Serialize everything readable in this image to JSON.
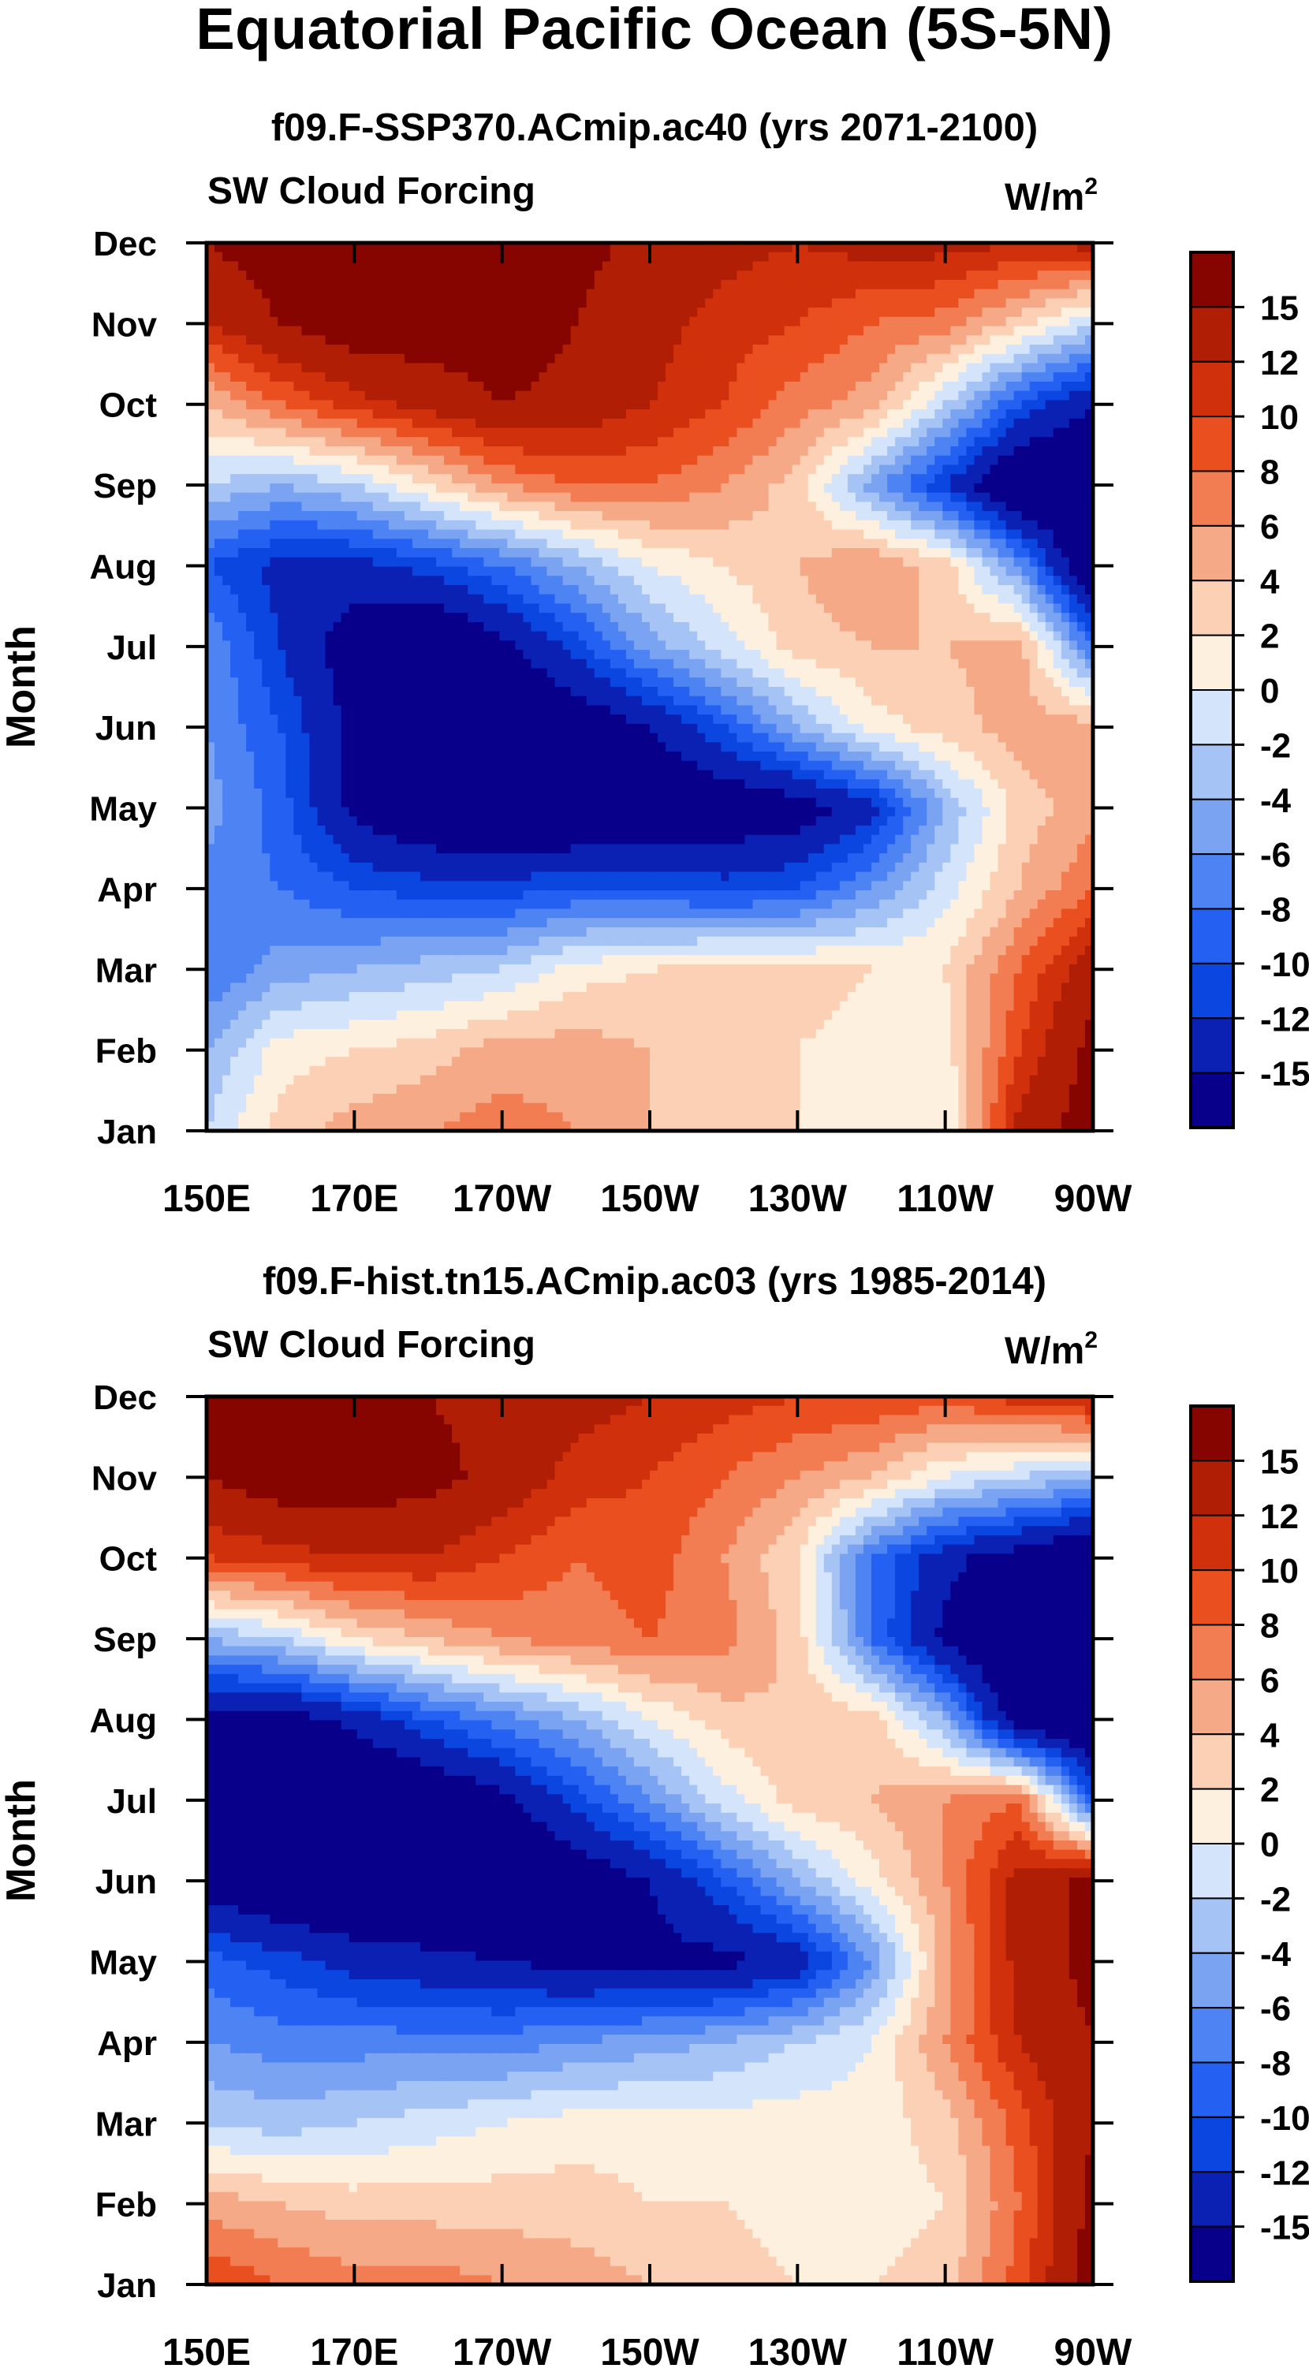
{
  "page": {
    "title": "Equatorial Pacific Ocean (5S-5N)"
  },
  "colors": {
    "palette": [
      "#08008a",
      "#0b21b3",
      "#0b46e0",
      "#2460f2",
      "#4d83f2",
      "#7aa3f2",
      "#a6c3f5",
      "#d4e5fb",
      "#fef0df",
      "#fbd0b5",
      "#f6a986",
      "#f27d52",
      "#ea4f20",
      "#d0300b",
      "#b01e05",
      "#860500"
    ],
    "axis": "#000000"
  },
  "chart_data": [
    {
      "type": "heatmap",
      "title": "f09.F-SSP370.ACmip.ac40 (yrs 2071-2100)",
      "variable": "SW Cloud Forcing",
      "units": "W/m",
      "units_sup": "2",
      "ylabel": "Month",
      "xlabel": "",
      "x_tick_labels": [
        "150E",
        "170E",
        "170W",
        "150W",
        "130W",
        "110W",
        "90W"
      ],
      "x_range": [
        150,
        270
      ],
      "y_tick_labels": [
        "Jan",
        "Feb",
        "Mar",
        "Apr",
        "May",
        "Jun",
        "Jul",
        "Aug",
        "Sep",
        "Oct",
        "Nov",
        "Dec"
      ],
      "colorbar_labels": [
        "15",
        "12",
        "10",
        "8",
        "6",
        "4",
        "2",
        "0",
        "-2",
        "-4",
        "-6",
        "-8",
        "-10",
        "-12",
        "-15"
      ],
      "contour_levels": [
        -15,
        -12,
        -10,
        -8,
        -6,
        -4,
        -2,
        0,
        2,
        4,
        6,
        8,
        10,
        12,
        15
      ],
      "grid_lon": [
        150,
        160,
        170,
        180,
        190,
        200,
        210,
        220,
        230,
        240,
        250,
        260,
        270
      ],
      "grid_months": [
        "Jan",
        "Feb",
        "Mar",
        "Apr",
        "May",
        "Jun",
        "Jul",
        "Aug",
        "Sep",
        "Oct",
        "Nov",
        "Dec"
      ],
      "values": [
        [
          -2,
          3,
          5,
          6,
          7,
          6,
          4,
          2,
          2,
          1,
          0,
          13,
          17
        ],
        [
          -4,
          1,
          2,
          3,
          5,
          5,
          4,
          3,
          2,
          1,
          1,
          10,
          16
        ],
        [
          -8,
          -5,
          -4,
          -3,
          -2,
          1,
          2,
          3,
          3,
          2,
          2,
          8,
          14
        ],
        [
          -7,
          -8,
          -10,
          -11,
          -11,
          -10,
          -10,
          -11,
          -10,
          -6,
          -1,
          4,
          8
        ],
        [
          -5,
          -9,
          -16,
          -19,
          -20,
          -20,
          -19,
          -18,
          -17,
          -13,
          -4,
          3,
          5
        ],
        [
          -6,
          -10,
          -16,
          -20,
          -20,
          -18,
          -15,
          -10,
          -4,
          1,
          3,
          5,
          5
        ],
        [
          -6,
          -12,
          -17,
          -20,
          -16,
          -11,
          -5,
          -1,
          3,
          4,
          4,
          5,
          -8
        ],
        [
          -10,
          -13,
          -13,
          -11,
          -8,
          -4,
          0,
          2,
          4,
          6,
          3,
          -6,
          -20
        ],
        [
          -2,
          -4,
          -2,
          2,
          6,
          8,
          8,
          6,
          3,
          -5,
          -12,
          -20,
          -20
        ],
        [
          4,
          8,
          11,
          13,
          15,
          14,
          12,
          10,
          7,
          5,
          -2,
          -10,
          -15
        ],
        [
          12,
          15,
          17,
          17,
          17,
          15,
          13,
          11,
          10,
          8,
          7,
          3,
          -2
        ],
        [
          15,
          17,
          17,
          17,
          17,
          16,
          14,
          13,
          12,
          13,
          13,
          12,
          13
        ]
      ]
    },
    {
      "type": "heatmap",
      "title": "f09.F-hist.tn15.ACmip.ac03 (yrs 1985-2014)",
      "variable": "SW Cloud Forcing",
      "units": "W/m",
      "units_sup": "2",
      "ylabel": "Month",
      "xlabel": "",
      "x_tick_labels": [
        "150E",
        "170E",
        "170W",
        "150W",
        "130W",
        "110W",
        "90W"
      ],
      "x_range": [
        150,
        270
      ],
      "y_tick_labels": [
        "Jan",
        "Feb",
        "Mar",
        "Apr",
        "May",
        "Jun",
        "Jul",
        "Aug",
        "Sep",
        "Oct",
        "Nov",
        "Dec"
      ],
      "colorbar_labels": [
        "15",
        "12",
        "10",
        "8",
        "6",
        "4",
        "2",
        "0",
        "-2",
        "-4",
        "-6",
        "-8",
        "-10",
        "-12",
        "-15"
      ],
      "contour_levels": [
        -15,
        -12,
        -10,
        -8,
        -6,
        -4,
        -2,
        0,
        2,
        4,
        6,
        8,
        10,
        12,
        15
      ],
      "grid_lon": [
        150,
        160,
        170,
        180,
        190,
        200,
        210,
        220,
        230,
        240,
        250,
        260,
        270
      ],
      "grid_months": [
        "Jan",
        "Feb",
        "Mar",
        "Apr",
        "May",
        "Jun",
        "Jul",
        "Aug",
        "Sep",
        "Oct",
        "Nov",
        "Dec"
      ],
      "values": [
        [
          10,
          8,
          7,
          7,
          6,
          5,
          4,
          3,
          2,
          2,
          3,
          9,
          17
        ],
        [
          5,
          4,
          3,
          3,
          3,
          3,
          2,
          2,
          1,
          1,
          2,
          8,
          16
        ],
        [
          -2,
          -3,
          -2,
          -1,
          0,
          1,
          1,
          1,
          1,
          1,
          3,
          9,
          15
        ],
        [
          -6,
          -7,
          -7,
          -7,
          -7,
          -6,
          -5,
          -4,
          -2,
          0,
          6,
          12,
          15
        ],
        [
          -9,
          -11,
          -13,
          -14,
          -15,
          -16,
          -16,
          -16,
          -14,
          -6,
          5,
          13,
          16
        ],
        [
          -17,
          -19,
          -20,
          -20,
          -20,
          -18,
          -15,
          -10,
          -4,
          1,
          6,
          13,
          16
        ],
        [
          -20,
          -20,
          -20,
          -19,
          -16,
          -11,
          -6,
          -1,
          3,
          4,
          6,
          8,
          -10
        ],
        [
          -17,
          -17,
          -14,
          -10,
          -7,
          -4,
          0,
          3,
          4,
          3,
          -4,
          -18,
          -20
        ],
        [
          -4,
          -2,
          2,
          4,
          6,
          7,
          8,
          7,
          3,
          -8,
          -16,
          -20,
          -20
        ],
        [
          10,
          11,
          12,
          12,
          10,
          8,
          9,
          6,
          2,
          -8,
          -14,
          -17,
          -20
        ],
        [
          15,
          17,
          17,
          16,
          14,
          11,
          10,
          8,
          6,
          4,
          0,
          -2,
          -4
        ],
        [
          17,
          17,
          16,
          15,
          14,
          13,
          12,
          11,
          10,
          10,
          9,
          11,
          13
        ]
      ]
    }
  ]
}
